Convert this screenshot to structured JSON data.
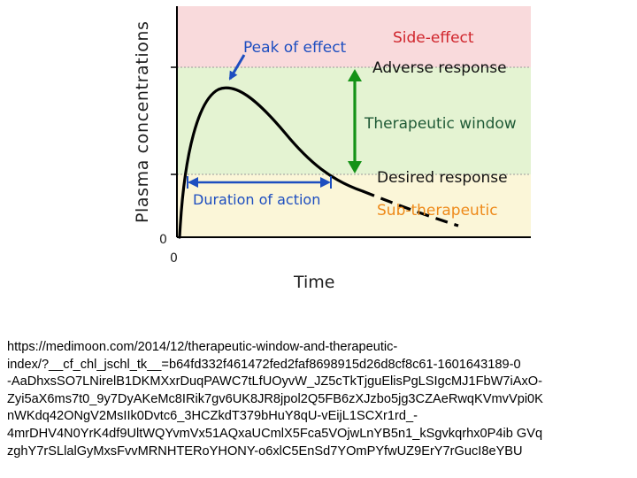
{
  "colors": {
    "side_effect_zone": "#f9dadc",
    "therapeutic_zone": "#e4f3d2",
    "sub_therapeutic_zone": "#fbf6d8",
    "curve": "#000000",
    "arrow": "#1d4ec0",
    "red_label": "#d0252c",
    "orange_label": "#ee8a1a",
    "window_arrow": "#149216",
    "window_label": "#1f5a36",
    "y_axis_title": "#1e1e1e"
  },
  "diagram": {
    "y_axis_title": "Plasma concentrations",
    "x_axis_title": "Time",
    "y_origin": "0",
    "x_origin": "0",
    "peak_label": "Peak of effect",
    "side_effect_label": "Side-effect",
    "adverse_label": "Adverse response",
    "window_label": "Therapeutic window",
    "desired_label": "Desired response",
    "duration_label": "Duration of action",
    "sub_therapeutic_label": "Sub-therapeutic"
  },
  "source_lines": [
    "https://medimoon.com/2014/12/therapeutic-window-and-therapeutic-",
    "index/?__cf_chl_jschl_tk__=b64fd332f461472fed2faf8698915d26d8cf8c61-1601643189-0",
    "-AaDhxsSO7LNirelB1DKMXxrDuqPAWC7tLfUOyvW_JZ5cTkTjguElisPgLSIgcMJ1FbW7iAxO-",
    "Zyi5aX6ms7t0_9y7DyAKeMc8IRik7gv6UK8JR8jpol2Q5FB6zXJzbo5jg3CZAeRwqKVmvVpi0K",
    "nWKdq42ONgV2MsIIk0Dvtc6_3HCZkdT379bHuY8qU-vEijL1SCXr1rd_-",
    "4mrDHV4N0YrK4df9UltWQYvmVx51AQxaUCmlX5Fca5VOjwLnYB5n1_kSgvkqrhx0P4ib GVq",
    "zghY7rSLlalGyMxsFvvMRNHTERoYHONY-o6xlC5EnSd7YOmPYfwUZ9ErY7rGucI8eYBU"
  ]
}
